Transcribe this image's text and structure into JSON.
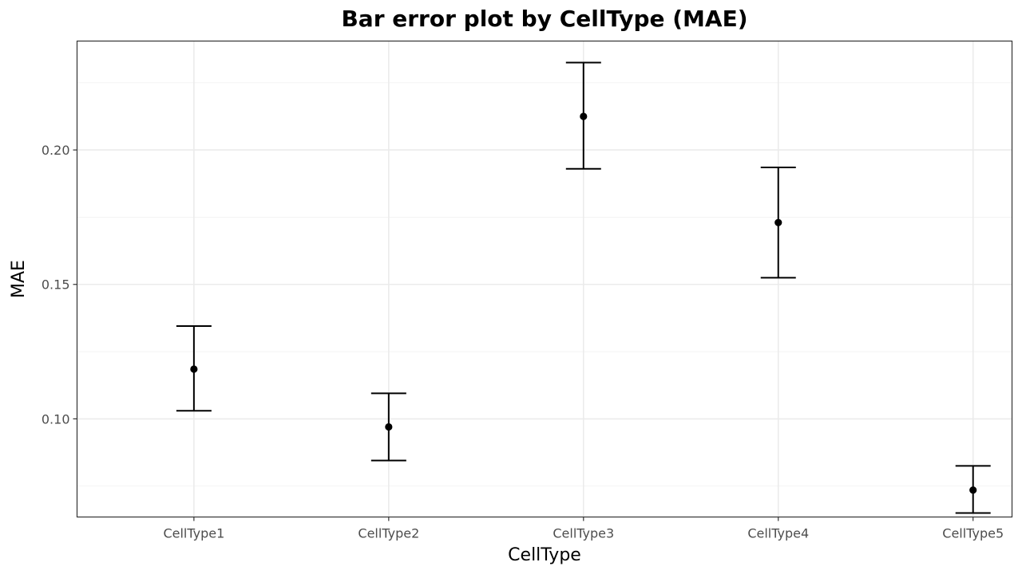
{
  "chart_data": {
    "type": "errorbar",
    "title": "Bar error plot by CellType (MAE)",
    "xlabel": "CellType",
    "ylabel": "MAE",
    "categories": [
      "CellType1",
      "CellType2",
      "CellType3",
      "CellType4",
      "CellType5"
    ],
    "values": [
      0.1185,
      0.097,
      0.2125,
      0.173,
      0.0735
    ],
    "error_low": [
      0.103,
      0.0845,
      0.193,
      0.1525,
      0.065
    ],
    "error_high": [
      0.1345,
      0.1095,
      0.2325,
      0.1935,
      0.0825
    ],
    "ylim": [
      0.0635,
      0.2405
    ],
    "yticks": [
      0.1,
      0.15,
      0.2
    ],
    "ytick_labels": [
      "0.10",
      "0.15",
      "0.20"
    ],
    "y_minor_ticks": [
      0.075,
      0.125,
      0.175,
      0.225
    ],
    "grid": true,
    "legend": "none",
    "colors": {
      "marks": "#000000",
      "grid": "#ebebeb",
      "panel_border": "#333333",
      "tick_text": "#4d4d4d"
    }
  }
}
